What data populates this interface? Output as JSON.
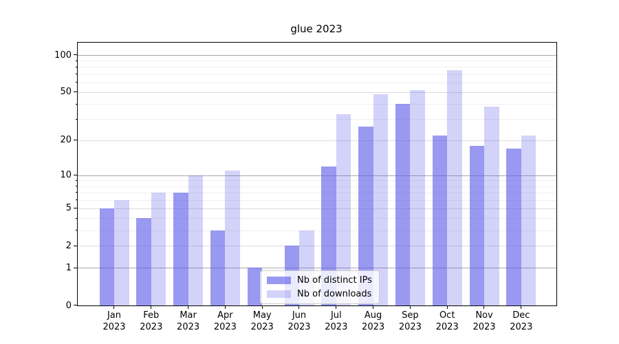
{
  "chart_data": {
    "type": "bar",
    "title": "glue 2023",
    "categories": [
      "Jan",
      "Feb",
      "Mar",
      "Apr",
      "May",
      "Jun",
      "Jul",
      "Aug",
      "Sep",
      "Oct",
      "Nov",
      "Dec"
    ],
    "category_year": "2023",
    "series": [
      {
        "name": "Nb of distinct IPs",
        "color": "#9999f2",
        "fill": "rgba(91,91,234,0.62)",
        "values": [
          5,
          4,
          7,
          3,
          1,
          2,
          12,
          26,
          40,
          22,
          18,
          17
        ]
      },
      {
        "name": "Nb of downloads",
        "color": "#d8d8f8",
        "fill": "rgba(91,91,234,0.27)",
        "values": [
          6,
          7,
          10,
          11,
          0,
          3,
          33,
          48,
          52,
          75,
          38,
          22
        ]
      }
    ],
    "y_scale": "log1p",
    "y_ticks": [
      0,
      1,
      2,
      5,
      10,
      20,
      50,
      100
    ],
    "y_minor_ticks": [
      3,
      4,
      6,
      7,
      8,
      9,
      30,
      40,
      60,
      70,
      80,
      90
    ],
    "y_decade_gridlines": [
      1,
      10,
      100
    ],
    "ylim": [
      0,
      126
    ],
    "grid": "horizontal",
    "legend_position": "lower-center",
    "colors": {
      "bar_base": "#5b5bea",
      "grid_minor": "#efefef",
      "grid_major": "#dcdcdc",
      "grid_decade": "#a8a8a8",
      "axis": "#000000",
      "background": "#ffffff"
    }
  }
}
